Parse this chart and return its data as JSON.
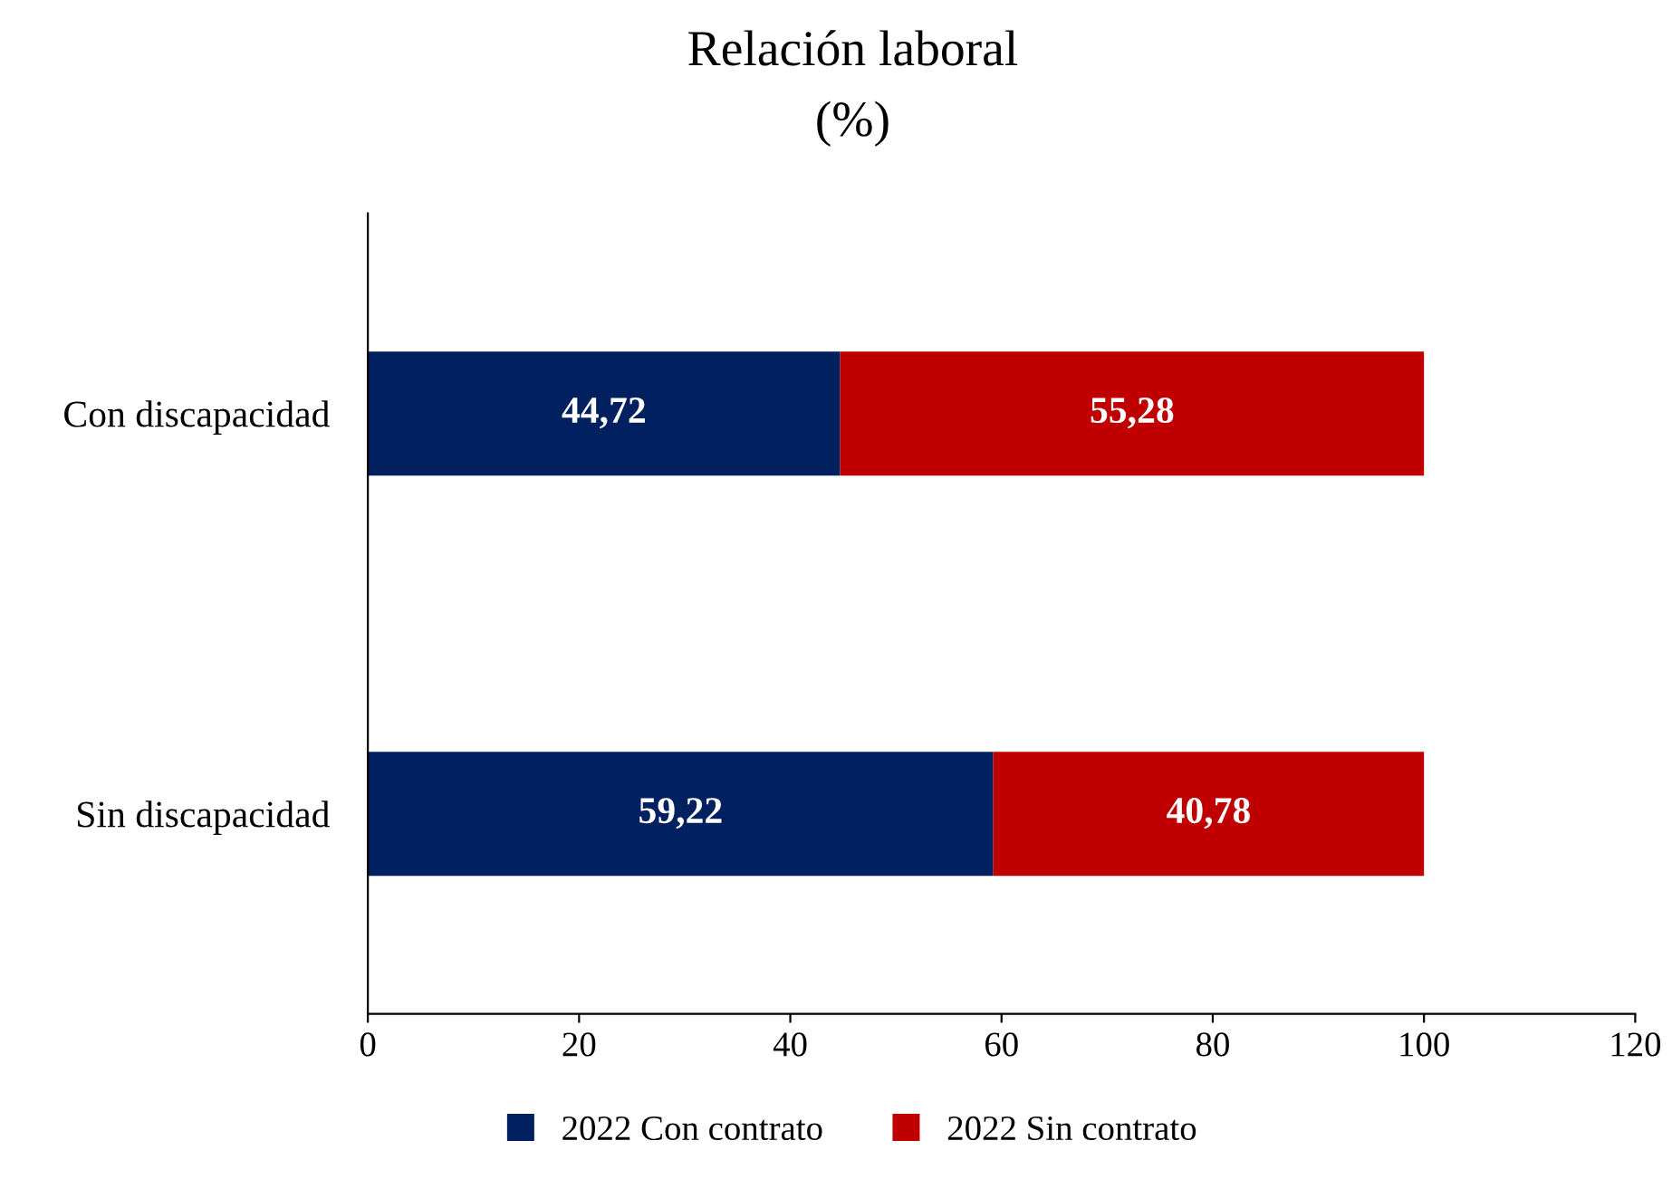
{
  "chart_data": {
    "type": "bar",
    "orientation": "horizontal",
    "stacked": true,
    "title": "Relación laboral",
    "subtitle": "(%)",
    "categories": [
      "Con discapacidad",
      "Sin discapacidad"
    ],
    "series": [
      {
        "name": "2022 Con contrato",
        "color": "#002060",
        "values": [
          44.72,
          59.22
        ],
        "value_labels": [
          "44,72",
          "59,22"
        ]
      },
      {
        "name": "2022 Sin contrato",
        "color": "#c00000",
        "values": [
          55.28,
          40.78
        ],
        "value_labels": [
          "55,28",
          "40,78"
        ]
      }
    ],
    "xlim": [
      0,
      120
    ],
    "xticks": [
      0,
      20,
      40,
      60,
      80,
      100,
      120
    ],
    "grid": false,
    "legend": "bottom"
  }
}
